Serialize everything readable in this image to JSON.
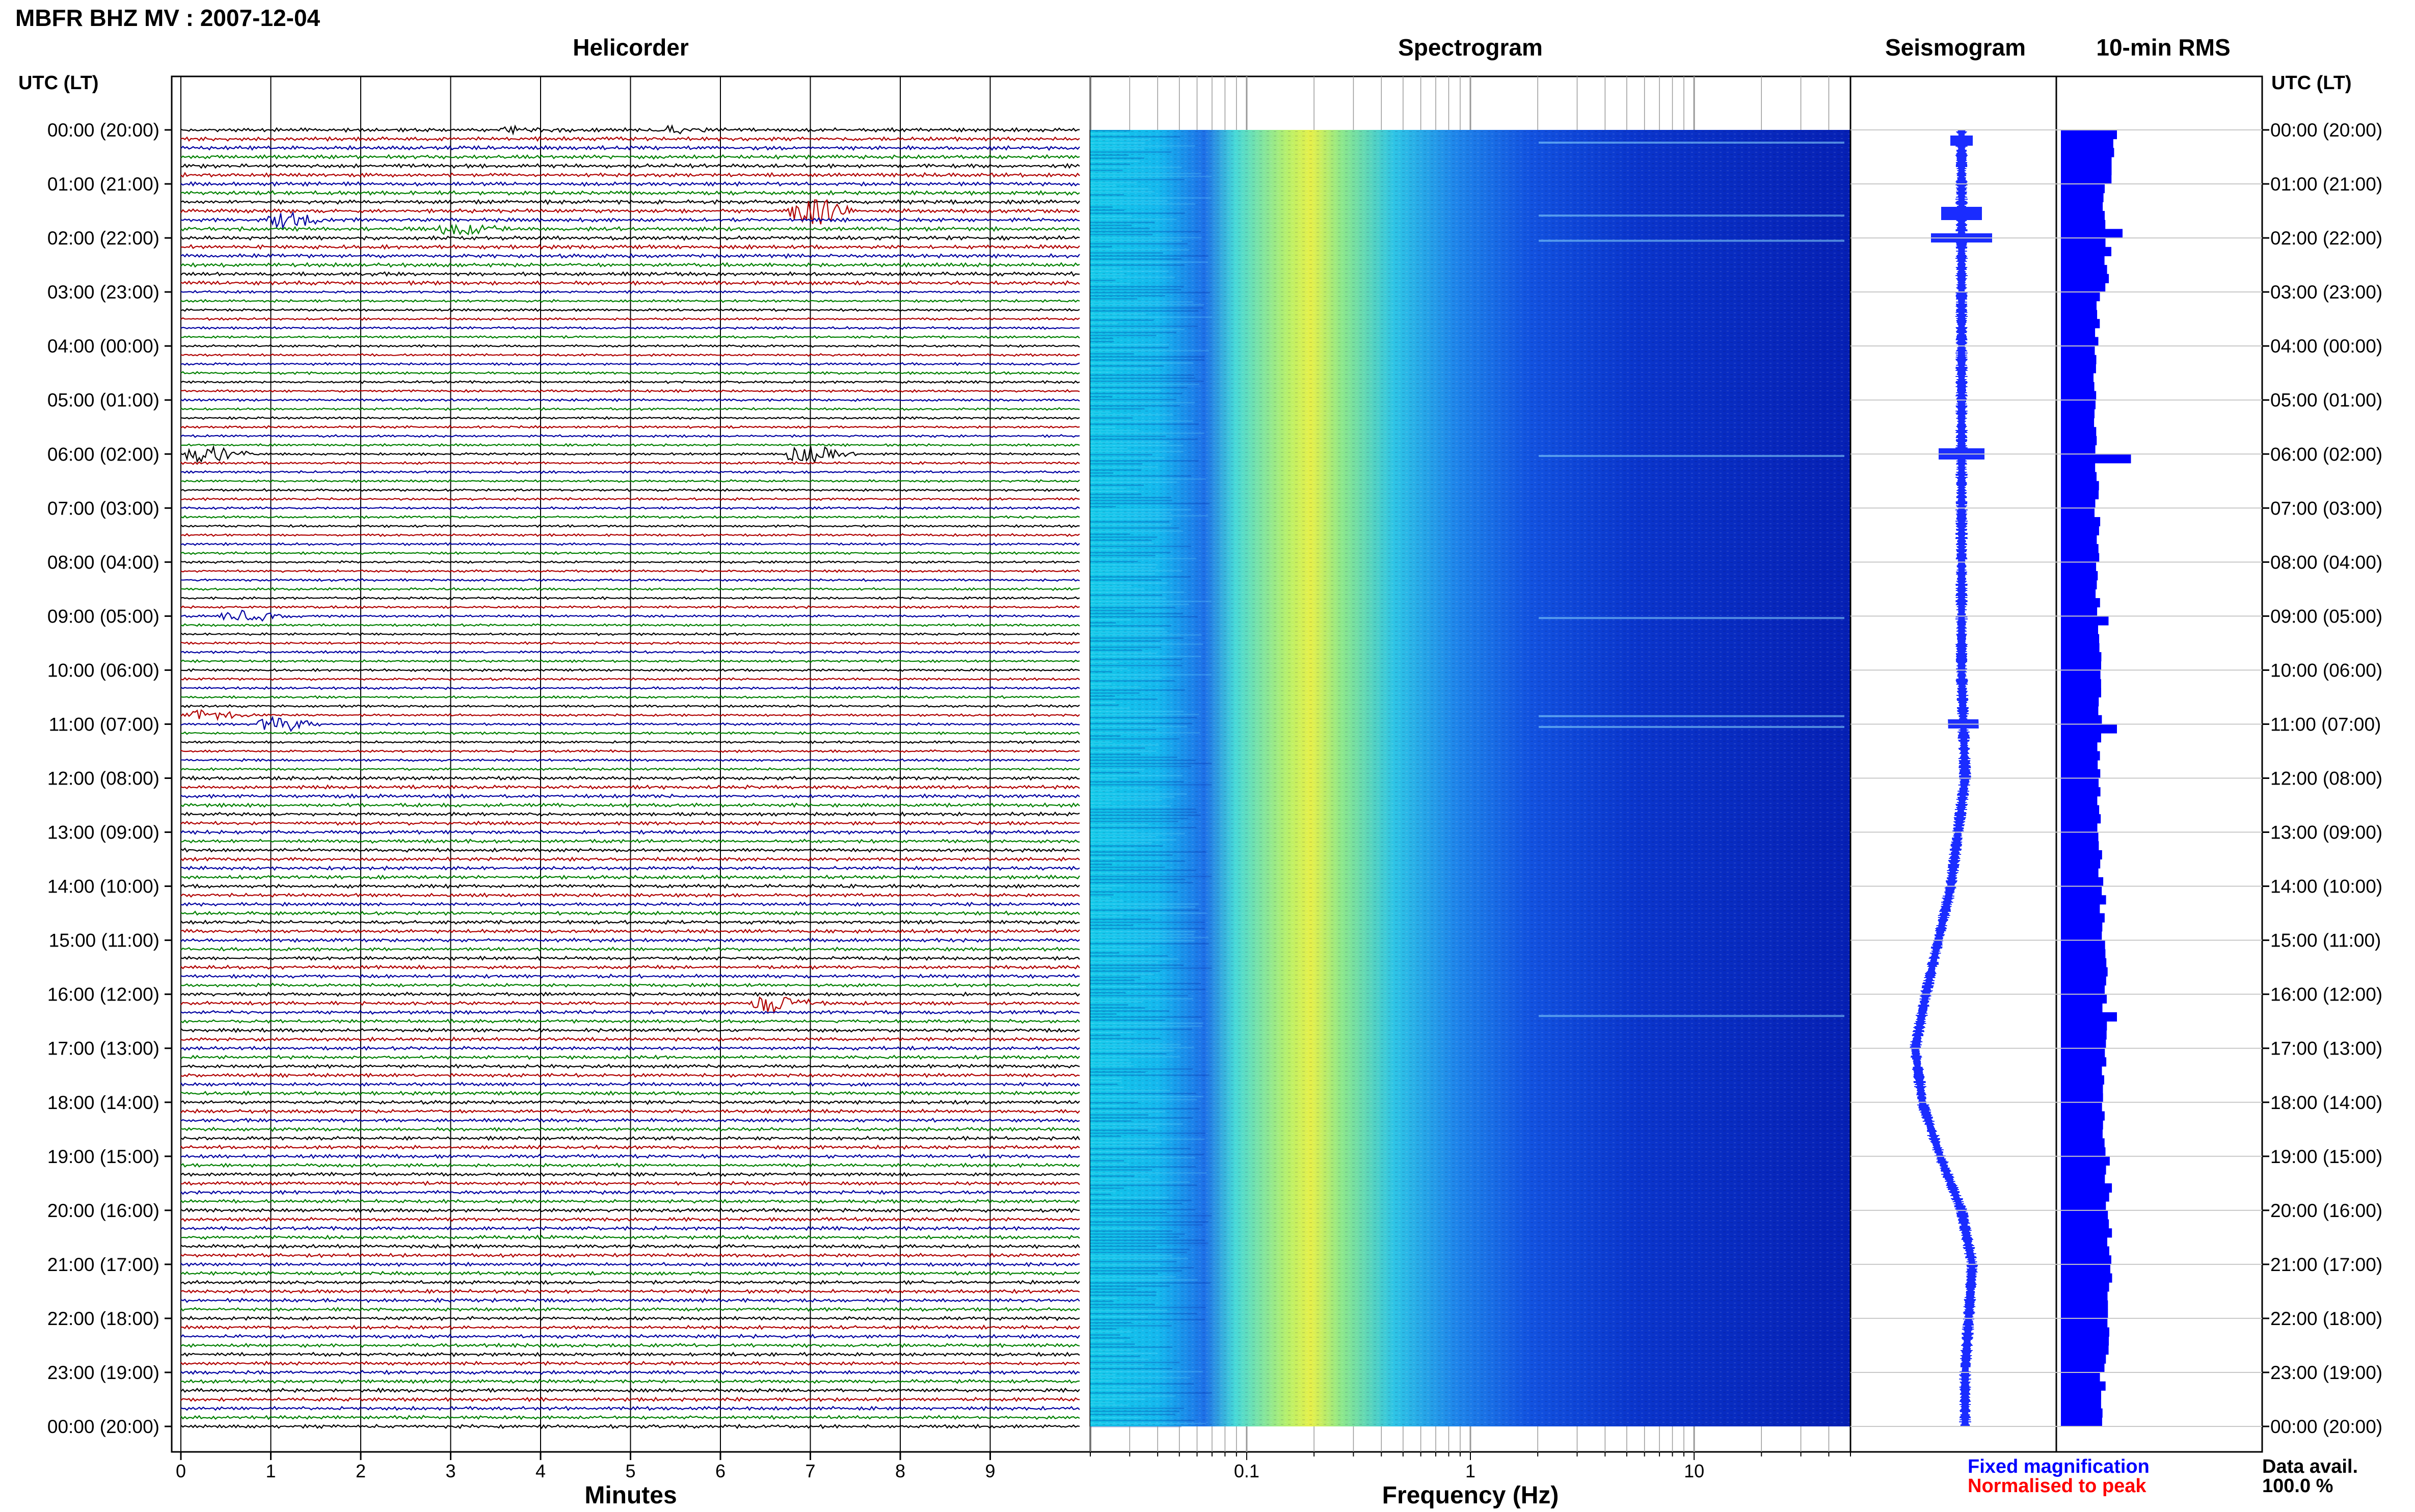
{
  "title": "MBFR BHZ MV : 2007-12-04",
  "panels": {
    "helicorder": "Helicorder",
    "spectrogram": "Spectrogram",
    "seismogram": "Seismogram",
    "rms": "10-min RMS"
  },
  "time_axis_header_left": "UTC (LT)",
  "time_axis_header_right": "UTC (LT)",
  "hour_labels": [
    "00:00 (20:00)",
    "01:00 (21:00)",
    "02:00 (22:00)",
    "03:00 (23:00)",
    "04:00 (00:00)",
    "05:00 (01:00)",
    "06:00 (02:00)",
    "07:00 (03:00)",
    "08:00 (04:00)",
    "09:00 (05:00)",
    "10:00 (06:00)",
    "11:00 (07:00)",
    "12:00 (08:00)",
    "13:00 (09:00)",
    "14:00 (10:00)",
    "15:00 (11:00)",
    "16:00 (12:00)",
    "17:00 (13:00)",
    "18:00 (14:00)",
    "19:00 (15:00)",
    "20:00 (16:00)",
    "21:00 (17:00)",
    "22:00 (18:00)",
    "23:00 (19:00)",
    "00:00 (20:00)"
  ],
  "legend": {
    "fixed": "Fixed magnification",
    "normalised": "Normalised to peak",
    "fixed_color": "#0000ff",
    "normalised_color": "#ff0000"
  },
  "data_availability": {
    "label": "Data avail.",
    "value": "100.0 %"
  },
  "chart_data": [
    {
      "type": "line",
      "panel": "Helicorder",
      "xlabel": "Minutes",
      "ylabel": "UTC (LT)",
      "x_ticks": [
        "0",
        "1",
        "2",
        "3",
        "4",
        "5",
        "6",
        "7",
        "8",
        "9"
      ],
      "xlim": [
        0,
        10
      ],
      "rows_per_hour": 6,
      "trace_colors": [
        "#000000",
        "#b00000",
        "#0000a0",
        "#008000"
      ],
      "events": [
        {
          "hour": 0,
          "row": 0,
          "minute": 3.7,
          "amplitude": 0.5
        },
        {
          "hour": 0,
          "row": 0,
          "minute": 5.4,
          "amplitude": 0.5
        },
        {
          "hour": 1,
          "row": 3,
          "minute": 6.9,
          "amplitude": 2.2
        },
        {
          "hour": 1,
          "row": 4,
          "minute": 1.1,
          "amplitude": 1.2
        },
        {
          "hour": 1,
          "row": 5,
          "minute": 3.0,
          "amplitude": 1.0
        },
        {
          "hour": 6,
          "row": 0,
          "minute": 0.2,
          "amplitude": 1.2
        },
        {
          "hour": 6,
          "row": 0,
          "minute": 6.9,
          "amplitude": 1.3
        },
        {
          "hour": 11,
          "row": 0,
          "minute": 1.0,
          "amplitude": 1.2
        },
        {
          "hour": 16,
          "row": 1,
          "minute": 6.5,
          "amplitude": 1.5
        },
        {
          "hour": 9,
          "row": 0,
          "minute": 0.6,
          "amplitude": 0.8
        },
        {
          "hour": 10,
          "row": 5,
          "minute": 0.2,
          "amplitude": 0.8
        }
      ]
    },
    {
      "type": "heatmap",
      "panel": "Spectrogram",
      "xlabel": "Frequency (Hz)",
      "x_scale": "log",
      "xlim": [
        0.02,
        50
      ],
      "x_ticks": [
        "0.1",
        "1",
        "10"
      ],
      "peak_frequency_hz": 0.25,
      "colormap": [
        "#00008b",
        "#0000ff",
        "#1e90ff",
        "#00ffff",
        "#7fff7f",
        "#ffff00"
      ]
    },
    {
      "type": "line",
      "panel": "Seismogram",
      "description_values_hours": [
        0,
        2,
        4,
        6,
        8,
        10,
        12,
        14,
        16,
        17,
        18,
        19,
        20,
        21,
        22,
        23,
        24
      ],
      "offset": [
        0,
        0,
        0,
        0,
        0,
        0,
        0.05,
        -0.15,
        -0.5,
        -0.65,
        -0.55,
        -0.3,
        0.0,
        0.15,
        0.1,
        0.05,
        0.05
      ]
    },
    {
      "type": "bar",
      "panel": "10-min RMS",
      "bins_per_hour": 6,
      "hourly_level": [
        0.9,
        0.8,
        0.8,
        0.65,
        0.6,
        0.62,
        0.65,
        0.65,
        0.65,
        0.7,
        0.7,
        0.7,
        0.7,
        0.72,
        0.75,
        0.8,
        0.8,
        0.78,
        0.78,
        0.85,
        0.85,
        0.85,
        0.8,
        0.75
      ],
      "spikes": [
        {
          "hour": 0,
          "bin": 0,
          "level": 1.0
        },
        {
          "hour": 1,
          "bin": 5,
          "level": 1.1
        },
        {
          "hour": 2,
          "bin": 1,
          "level": 0.9
        },
        {
          "hour": 6,
          "bin": 0,
          "level": 1.25
        },
        {
          "hour": 9,
          "bin": 0,
          "level": 0.85
        },
        {
          "hour": 11,
          "bin": 0,
          "level": 1.0
        },
        {
          "hour": 16,
          "bin": 2,
          "level": 1.0
        }
      ],
      "color": "#0000ff"
    }
  ]
}
